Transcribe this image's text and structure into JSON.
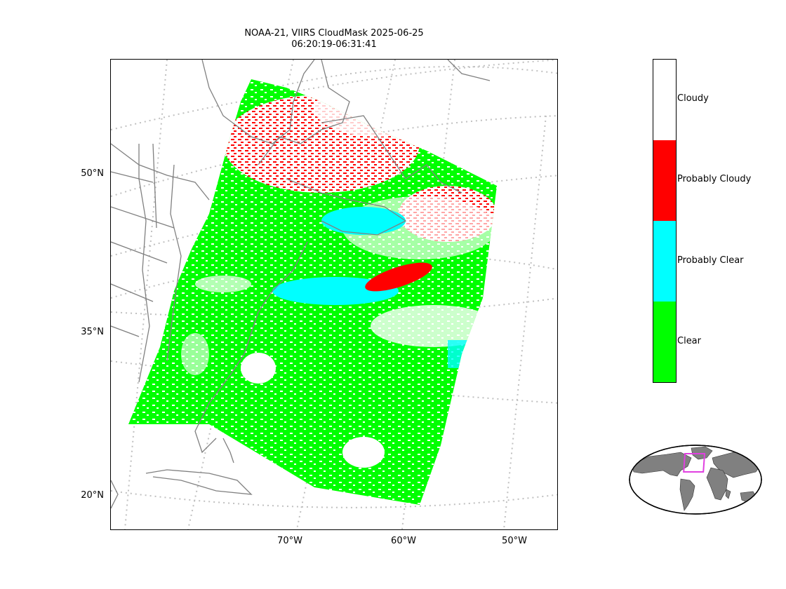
{
  "title": {
    "line1": "NOAA-21, VIIRS CloudMask 2025-06-25",
    "line2": "06:20:19-06:31:41"
  },
  "latitude_labels": [
    "50°N",
    "35°N",
    "20°N"
  ],
  "longitude_labels": [
    "70°W",
    "60°W",
    "50°W"
  ],
  "colorbar": {
    "categories": [
      {
        "label": "Cloudy",
        "color": "#ffffff"
      },
      {
        "label": "Probably Cloudy",
        "color": "#ff0000"
      },
      {
        "label": "Probably Clear",
        "color": "#00ffff"
      },
      {
        "label": "Clear",
        "color": "#00ff00"
      }
    ]
  },
  "colors": {
    "coastline": "#808080",
    "gridline": "#c0c0c0",
    "inset_land": "#808080",
    "inset_highlight": "#e040e0"
  }
}
